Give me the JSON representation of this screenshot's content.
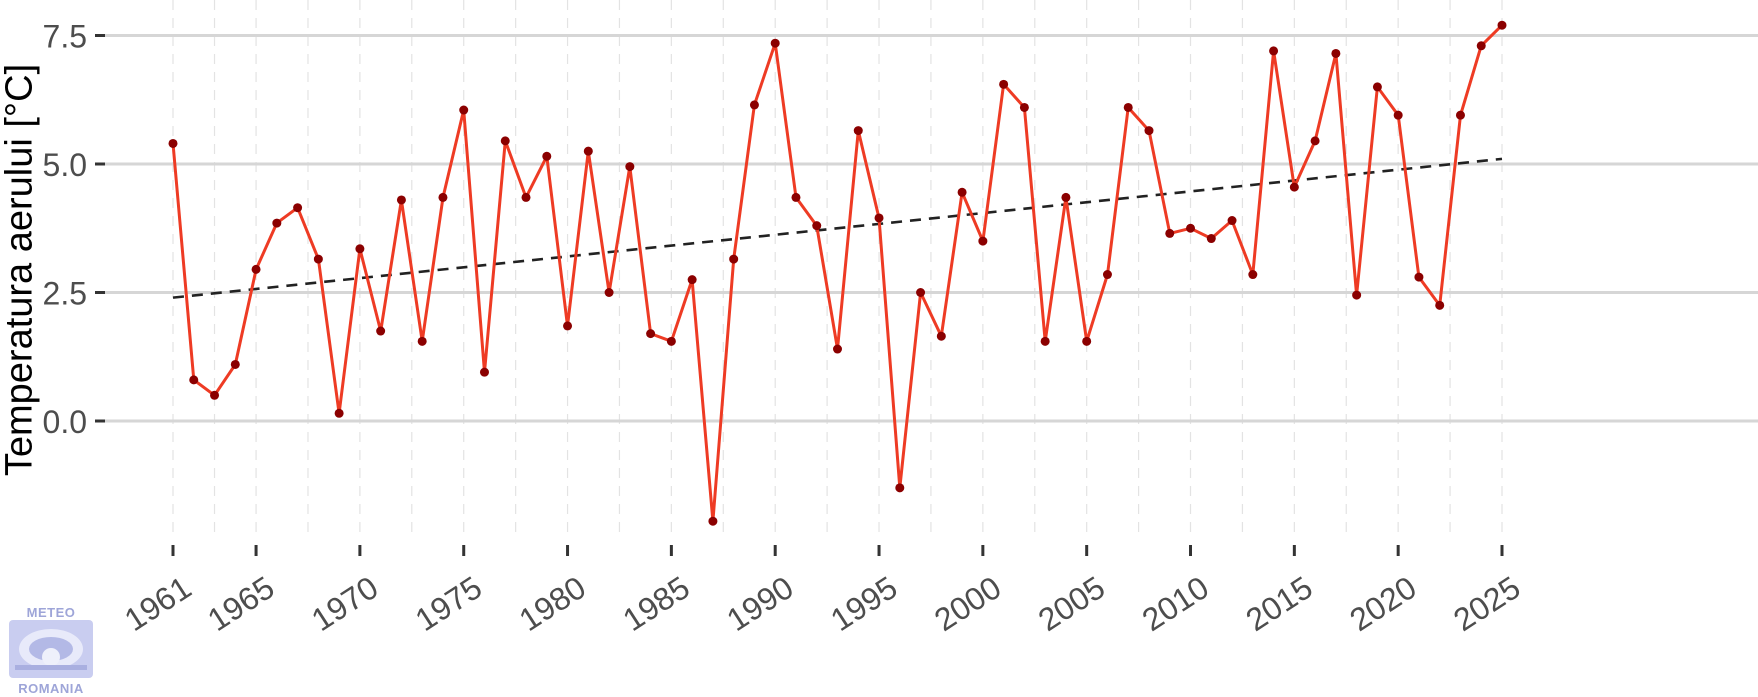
{
  "chart_data": {
    "type": "line",
    "ylabel": "Temperatura aerului [°C]",
    "xlabel": "",
    "title": "",
    "xlim": [
      1961,
      2025
    ],
    "ylim": [
      -2.0,
      7.8
    ],
    "x_ticks": [
      "1961",
      "1965",
      "1970",
      "1975",
      "1980",
      "1985",
      "1990",
      "1995",
      "2000",
      "2005",
      "2010",
      "2015",
      "2020",
      "2025"
    ],
    "y_ticks": [
      "0.0",
      "2.5",
      "5.0",
      "7.5"
    ],
    "grid": true,
    "line_color": "#ee3b24",
    "point_color": "#8b0000",
    "trend_color": "#222222",
    "series": [
      {
        "x": [
          1961,
          1962,
          1963,
          1964,
          1965,
          1966,
          1967,
          1968,
          1969,
          1970,
          1971,
          1972,
          1973,
          1974,
          1975,
          1976,
          1977,
          1978,
          1979,
          1980,
          1981,
          1982,
          1983,
          1984,
          1985,
          1986,
          1987,
          1988,
          1989,
          1990,
          1991,
          1992,
          1993,
          1994,
          1995,
          1996,
          1997,
          1998,
          1999,
          2000,
          2001,
          2002,
          2003,
          2004,
          2005,
          2006,
          2007,
          2008,
          2009,
          2010,
          2011,
          2012,
          2013,
          2014,
          2015,
          2016,
          2017,
          2018,
          2019,
          2020,
          2021,
          2022,
          2023,
          2024,
          2025
        ],
        "y": [
          5.4,
          0.8,
          0.5,
          1.1,
          2.95,
          3.85,
          4.15,
          3.15,
          0.15,
          3.35,
          1.75,
          4.3,
          1.55,
          4.35,
          6.05,
          0.95,
          5.45,
          4.35,
          5.15,
          1.85,
          5.25,
          2.5,
          4.95,
          1.7,
          1.55,
          2.75,
          -1.95,
          3.15,
          6.15,
          7.35,
          4.35,
          3.8,
          1.4,
          5.65,
          3.95,
          -1.3,
          2.5,
          1.65,
          4.45,
          3.5,
          6.55,
          6.1,
          1.55,
          4.35,
          1.55,
          2.85,
          6.1,
          5.65,
          3.65,
          3.75,
          3.55,
          3.9,
          2.85,
          7.2,
          4.55,
          5.45,
          7.15,
          2.45,
          6.5,
          5.95,
          2.8,
          2.25,
          5.95,
          7.3,
          7.7
        ]
      }
    ],
    "trend": {
      "x": [
        1961,
        2025
      ],
      "y": [
        2.4,
        5.1
      ]
    }
  },
  "logo": {
    "top_text": "METEO",
    "bottom_text": "ROMANIA",
    "color": "#9ea5d8"
  }
}
